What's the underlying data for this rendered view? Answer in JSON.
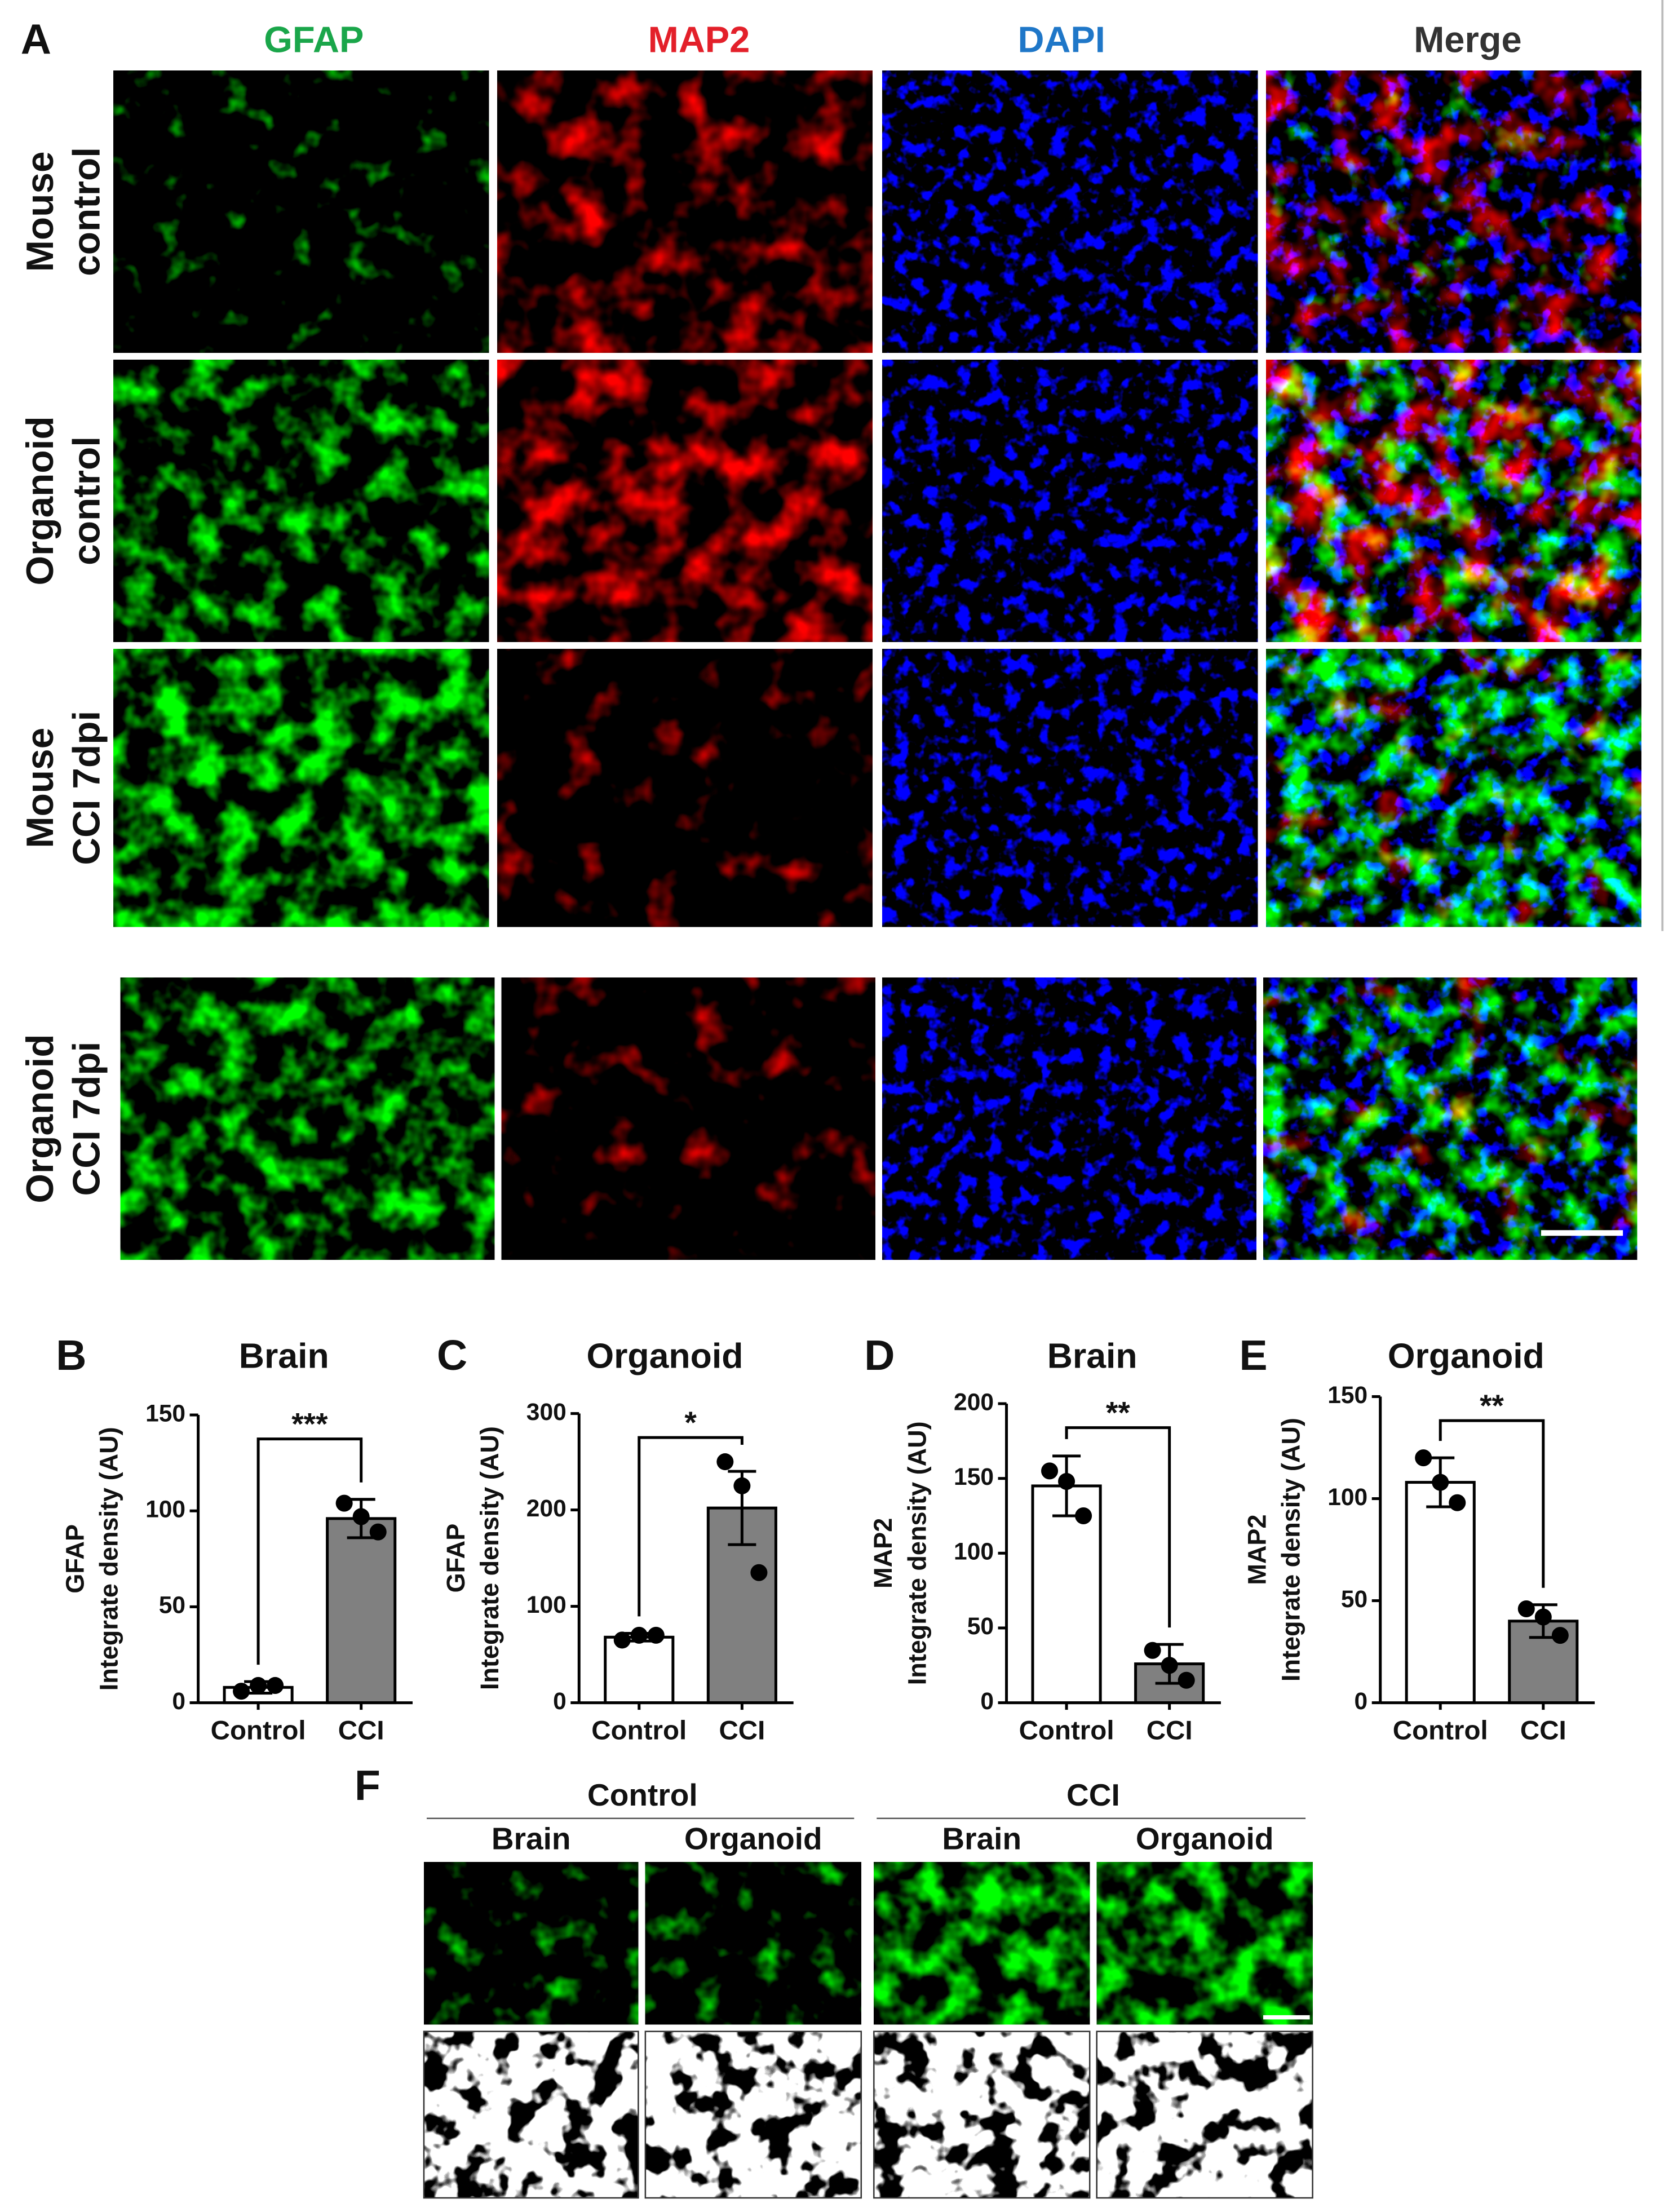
{
  "panel_a": {
    "label": "A",
    "columns": [
      {
        "text": "GFAP",
        "color": "#1aa64a"
      },
      {
        "text": "MAP2",
        "color": "#e3202a"
      },
      {
        "text": "DAPI",
        "color": "#1f77c8"
      },
      {
        "text": "Merge",
        "color": "#333333"
      }
    ],
    "rows": [
      [
        "Mouse",
        "control"
      ],
      [
        "Organoid",
        "control"
      ],
      [
        "Mouse",
        "CCI 7dpi"
      ],
      [
        "Organoid",
        "CCI 7dpi"
      ]
    ]
  },
  "chart_data": [
    {
      "type": "bar",
      "panel": "B",
      "title": "Brain",
      "ylabel": [
        "GFAP",
        "Integrate density (AU)"
      ],
      "categories": [
        "Control",
        "CCI"
      ],
      "values": [
        8,
        96
      ],
      "errors": [
        3,
        10
      ],
      "points": [
        [
          6,
          9,
          9
        ],
        [
          104,
          97,
          89
        ]
      ],
      "colors": [
        "#ffffff",
        "#808080"
      ],
      "ylim": [
        0,
        150
      ],
      "yticks": [
        0,
        50,
        100,
        150
      ],
      "significance": "***"
    },
    {
      "type": "bar",
      "panel": "C",
      "title": "Organoid",
      "ylabel": [
        "GFAP",
        "Integrate density (AU)"
      ],
      "categories": [
        "Control",
        "CCI"
      ],
      "values": [
        68,
        202
      ],
      "errors": [
        4,
        38
      ],
      "points": [
        [
          65,
          70,
          70
        ],
        [
          250,
          225,
          135
        ]
      ],
      "colors": [
        "#ffffff",
        "#808080"
      ],
      "ylim": [
        0,
        300
      ],
      "yticks": [
        0,
        100,
        200,
        300
      ],
      "significance": "*"
    },
    {
      "type": "bar",
      "panel": "D",
      "title": "Brain",
      "ylabel": [
        "MAP2",
        "Integrate density (AU)"
      ],
      "categories": [
        "Control",
        "CCI"
      ],
      "values": [
        145,
        26
      ],
      "errors": [
        20,
        13
      ],
      "points": [
        [
          155,
          148,
          125
        ],
        [
          35,
          25,
          15
        ]
      ],
      "colors": [
        "#ffffff",
        "#808080"
      ],
      "ylim": [
        0,
        200
      ],
      "yticks": [
        0,
        50,
        100,
        150,
        200
      ],
      "significance": "**"
    },
    {
      "type": "bar",
      "panel": "E",
      "title": "Organoid",
      "ylabel": [
        "MAP2",
        "Integrate density (AU)"
      ],
      "categories": [
        "Control",
        "CCI"
      ],
      "values": [
        108,
        40
      ],
      "errors": [
        12,
        8
      ],
      "points": [
        [
          120,
          108,
          98
        ],
        [
          46,
          42,
          33
        ]
      ],
      "colors": [
        "#ffffff",
        "#808080"
      ],
      "ylim": [
        0,
        150
      ],
      "yticks": [
        0,
        50,
        100,
        150
      ],
      "significance": "**"
    }
  ],
  "panel_f": {
    "label": "F",
    "groups": [
      {
        "title": "Control",
        "columns": [
          "Brain",
          "Organoid"
        ]
      },
      {
        "title": "CCI",
        "columns": [
          "Brain",
          "Organoid"
        ]
      }
    ]
  }
}
